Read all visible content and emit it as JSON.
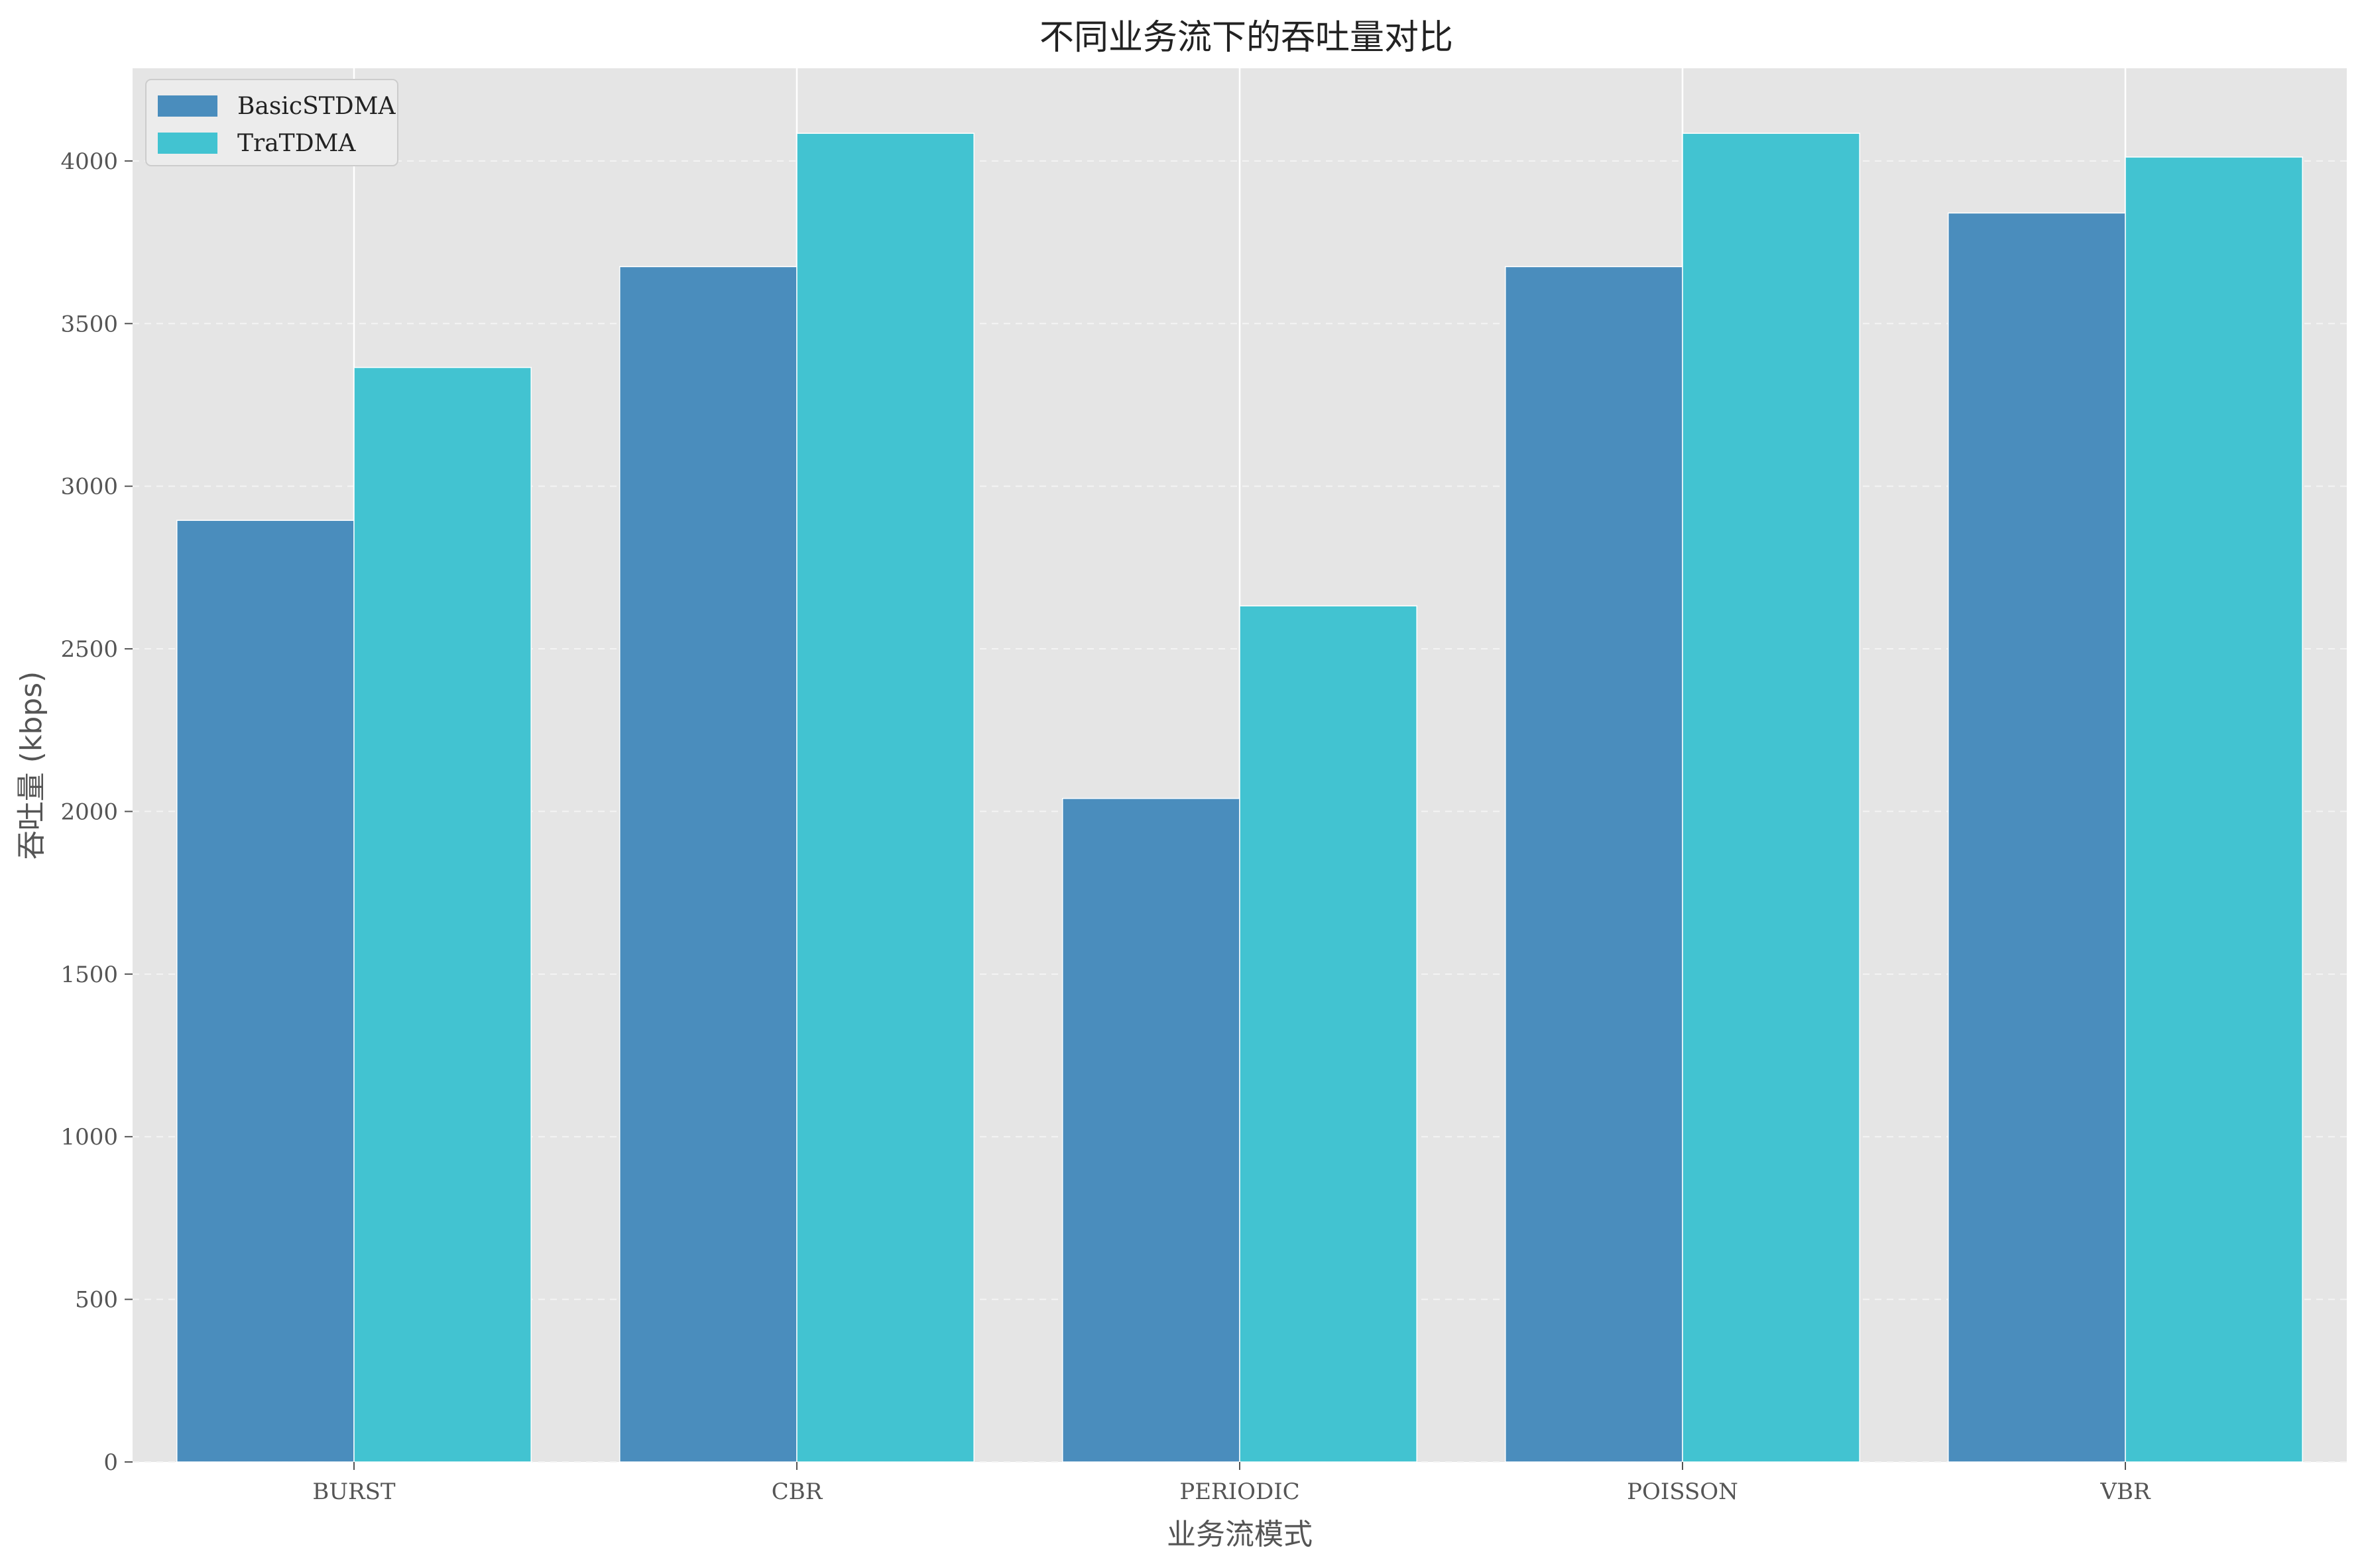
{
  "chart_data": {
    "type": "bar",
    "title": "不同业务流下的吞吐量对比",
    "xlabel": "业务流模式",
    "ylabel": "吞吐量 (kbps)",
    "categories": [
      "BURST",
      "CBR",
      "PERIODIC",
      "POISSON",
      "VBR"
    ],
    "series": [
      {
        "name": "BasicSTDMA",
        "color": "#4a8dbd",
        "values": [
          2895,
          3675,
          2040,
          3675,
          3840
        ]
      },
      {
        "name": "TraTDMA",
        "color": "#42c3d1",
        "values": [
          3365,
          4085,
          2632,
          4085,
          4012
        ]
      }
    ],
    "ylim": [
      0,
      4285
    ],
    "yticks": [
      0,
      500,
      1000,
      1500,
      2000,
      2500,
      3000,
      3500,
      4000
    ],
    "grid": true,
    "legend_position": "top-left",
    "background_color": "#e5e5e5",
    "grid_color": "#ffffff"
  }
}
